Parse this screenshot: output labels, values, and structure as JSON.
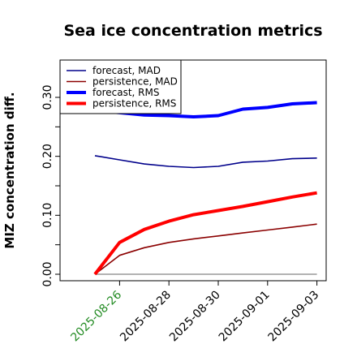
{
  "chart_data": {
    "type": "line",
    "title": "Sea ice concentration metrics",
    "ylabel": "MIZ concentration diff.",
    "xlabel": "",
    "ylim": [
      -0.005,
      0.36
    ],
    "yticks": [
      0.0,
      0.1,
      0.2,
      0.3
    ],
    "ytick_labels": [
      "0.00",
      "0.10",
      "0.20",
      "0.30"
    ],
    "x_dates": [
      "2025-08-25",
      "2025-08-26",
      "2025-08-27",
      "2025-08-28",
      "2025-08-29",
      "2025-08-30",
      "2025-08-31",
      "2025-09-01",
      "2025-09-02",
      "2025-09-03"
    ],
    "xtick_labels": [
      {
        "label": "2025-08-26",
        "color": "#228b22"
      },
      {
        "label": "2025-08-28",
        "color": "#000000"
      },
      {
        "label": "2025-08-30",
        "color": "#000000"
      },
      {
        "label": "2025-09-01",
        "color": "#000000"
      },
      {
        "label": "2025-09-03",
        "color": "#000000"
      }
    ],
    "series": [
      {
        "name": "forecast,  MAD",
        "color": "#00008b",
        "width": "thin",
        "values": [
          0.201,
          0.194,
          0.187,
          0.183,
          0.181,
          0.183,
          0.19,
          0.192,
          0.196,
          0.197
        ]
      },
      {
        "name": "persistence, MAD",
        "color": "#8b0000",
        "width": "thin",
        "values": [
          0.0,
          0.032,
          0.045,
          0.054,
          0.06,
          0.065,
          0.07,
          0.075,
          0.08,
          0.085
        ]
      },
      {
        "name": "forecast,  RMS",
        "color": "#0000ff",
        "width": "thick",
        "values": [
          0.278,
          0.274,
          0.27,
          0.269,
          0.267,
          0.269,
          0.28,
          0.283,
          0.289,
          0.291
        ]
      },
      {
        "name": "persistence, RMS",
        "color": "#ff0000",
        "width": "thick",
        "values": [
          0.0,
          0.054,
          0.076,
          0.09,
          0.101,
          0.108,
          0.115,
          0.123,
          0.131,
          0.138
        ]
      }
    ],
    "zero_line": true,
    "grid": false,
    "legend_position": "top-left"
  }
}
